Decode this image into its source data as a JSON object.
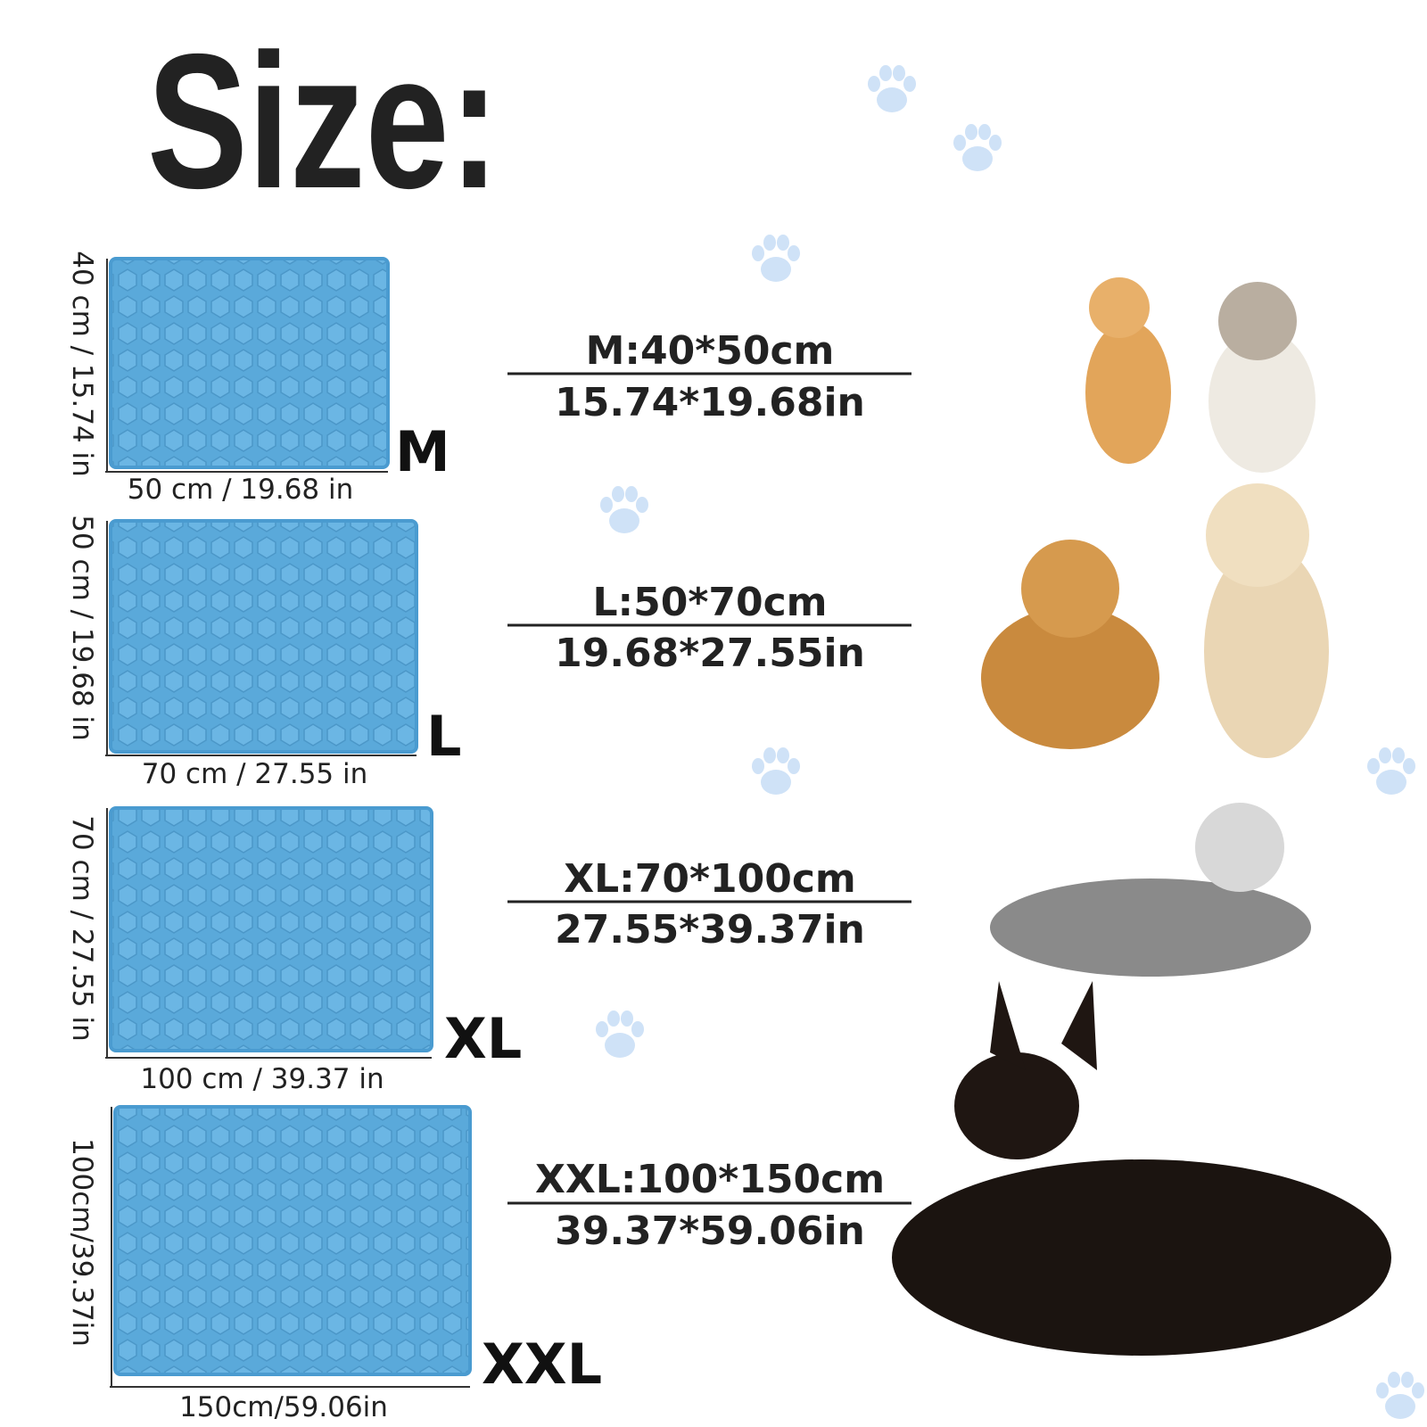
{
  "header": {
    "title": "Size:"
  },
  "sizes": [
    {
      "label": "M",
      "width_label": "50 cm / 19.68 in",
      "height_label": "40 cm / 15.74 in",
      "metric": "M:40*50cm",
      "imperial": "15.74*19.68in"
    },
    {
      "label": "L",
      "width_label": "70 cm / 27.55 in",
      "height_label": "50 cm / 19.68 in",
      "metric": "L:50*70cm",
      "imperial": "19.68*27.55in"
    },
    {
      "label": "XL",
      "width_label": "100 cm / 39.37 in",
      "height_label": "70 cm / 27.55 in",
      "metric": "XL:70*100cm",
      "imperial": "27.55*39.37in"
    },
    {
      "label": "XXL",
      "width_label": "150cm/59.06in",
      "height_label": "100cm/39.37in",
      "metric": "XXL:100*150cm",
      "imperial": "39.37*59.06in"
    }
  ]
}
